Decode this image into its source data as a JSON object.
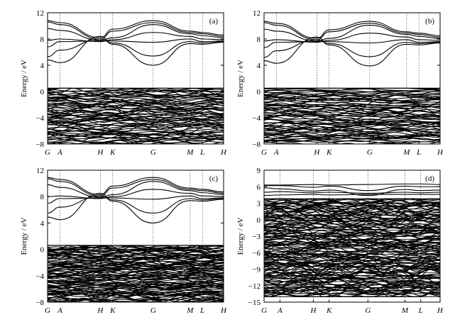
{
  "chart_data": [
    {
      "panel": "(a)",
      "type": "line",
      "ylabel": "Energy / eV",
      "ylim": [
        -8,
        12
      ],
      "yticks": [
        -8,
        -4,
        0,
        4,
        8,
        12
      ],
      "kpoints": [
        {
          "label": "G",
          "pos": 0.0
        },
        {
          "label": "A",
          "pos": 0.07
        },
        {
          "label": "H",
          "pos": 0.3
        },
        {
          "label": "K",
          "pos": 0.37
        },
        {
          "label": "G",
          "pos": 0.6
        },
        {
          "label": "M",
          "pos": 0.81
        },
        {
          "label": "L",
          "pos": 0.88
        },
        {
          "label": "H",
          "pos": 1.0
        }
      ],
      "conduction_bands": [
        {
          "x": [
            0,
            0.07,
            0.3,
            0.37,
            0.6,
            0.81,
            0.88,
            1.0
          ],
          "y": [
            10.8,
            10.5,
            8.2,
            9.5,
            10.8,
            9.2,
            9.0,
            8.6
          ]
        },
        {
          "x": [
            0,
            0.07,
            0.3,
            0.37,
            0.6,
            0.81,
            0.88,
            1.0
          ],
          "y": [
            10.6,
            10.2,
            8.0,
            9.2,
            10.5,
            9.0,
            8.8,
            8.4
          ]
        },
        {
          "x": [
            0,
            0.07,
            0.3,
            0.37,
            0.6,
            0.81,
            0.88,
            1.0
          ],
          "y": [
            9.6,
            9.3,
            7.8,
            8.2,
            10.2,
            8.8,
            8.5,
            8.2
          ]
        },
        {
          "x": [
            0,
            0.07,
            0.3,
            0.37,
            0.6,
            0.81,
            0.88,
            1.0
          ],
          "y": [
            7.8,
            8.0,
            7.6,
            7.9,
            9.0,
            8.4,
            8.0,
            7.9
          ]
        },
        {
          "x": [
            0,
            0.07,
            0.3,
            0.37,
            0.6,
            0.81,
            0.88,
            1.0
          ],
          "y": [
            6.8,
            7.6,
            7.7,
            7.7,
            7.5,
            8.0,
            7.6,
            7.7
          ]
        },
        {
          "x": [
            0,
            0.07,
            0.3,
            0.37,
            0.6,
            0.81,
            0.88,
            1.0
          ],
          "y": [
            5.3,
            6.3,
            8.0,
            7.4,
            5.4,
            7.6,
            7.4,
            7.6
          ]
        },
        {
          "x": [
            0,
            0.07,
            0.3,
            0.37,
            0.6,
            0.81,
            0.88,
            1.0
          ],
          "y": [
            4.8,
            4.4,
            8.4,
            7.2,
            4.0,
            7.3,
            7.2,
            7.5
          ]
        }
      ],
      "valence_band_region": [
        -8,
        0.5
      ]
    },
    {
      "panel": "(b)",
      "type": "line",
      "ylabel": "Energy / eV",
      "ylim": [
        -8,
        12
      ],
      "yticks": [
        -8,
        -4,
        0,
        4,
        8,
        12
      ],
      "kpoints": [
        {
          "label": "G",
          "pos": 0.0
        },
        {
          "label": "A",
          "pos": 0.07
        },
        {
          "label": "H",
          "pos": 0.3
        },
        {
          "label": "K",
          "pos": 0.37
        },
        {
          "label": "G",
          "pos": 0.6
        },
        {
          "label": "M",
          "pos": 0.81
        },
        {
          "label": "L",
          "pos": 0.88
        },
        {
          "label": "H",
          "pos": 1.0
        }
      ],
      "conduction_bands": [
        {
          "x": [
            0,
            0.07,
            0.3,
            0.37,
            0.6,
            0.81,
            0.88,
            1.0
          ],
          "y": [
            10.7,
            10.4,
            8.1,
            9.4,
            10.7,
            9.1,
            8.9,
            8.5
          ]
        },
        {
          "x": [
            0,
            0.07,
            0.3,
            0.37,
            0.6,
            0.81,
            0.88,
            1.0
          ],
          "y": [
            10.5,
            10.1,
            7.9,
            9.1,
            10.4,
            8.9,
            8.7,
            8.3
          ]
        },
        {
          "x": [
            0,
            0.07,
            0.3,
            0.37,
            0.6,
            0.81,
            0.88,
            1.0
          ],
          "y": [
            9.5,
            9.2,
            7.7,
            8.1,
            10.1,
            8.7,
            8.4,
            8.1
          ]
        },
        {
          "x": [
            0,
            0.07,
            0.3,
            0.37,
            0.6,
            0.81,
            0.88,
            1.0
          ],
          "y": [
            7.7,
            7.9,
            7.5,
            7.8,
            8.9,
            8.3,
            7.9,
            7.8
          ]
        },
        {
          "x": [
            0,
            0.07,
            0.3,
            0.37,
            0.6,
            0.81,
            0.88,
            1.0
          ],
          "y": [
            6.7,
            7.5,
            7.6,
            7.6,
            7.4,
            7.9,
            7.5,
            7.6
          ]
        },
        {
          "x": [
            0,
            0.07,
            0.3,
            0.37,
            0.6,
            0.81,
            0.88,
            1.0
          ],
          "y": [
            5.2,
            6.2,
            7.9,
            7.3,
            5.3,
            7.5,
            7.3,
            7.5
          ]
        },
        {
          "x": [
            0,
            0.07,
            0.3,
            0.37,
            0.6,
            0.81,
            0.88,
            1.0
          ],
          "y": [
            4.7,
            4.3,
            8.3,
            7.1,
            3.9,
            7.2,
            7.1,
            7.4
          ]
        }
      ],
      "valence_band_region": [
        -8,
        0.5
      ]
    },
    {
      "panel": "(c)",
      "type": "line",
      "ylabel": "Energy / eV",
      "ylim": [
        -8,
        12
      ],
      "yticks": [
        -8,
        -4,
        0,
        4,
        8,
        12
      ],
      "kpoints": [
        {
          "label": "G",
          "pos": 0.0
        },
        {
          "label": "A",
          "pos": 0.07
        },
        {
          "label": "H",
          "pos": 0.3
        },
        {
          "label": "K",
          "pos": 0.37
        },
        {
          "label": "G",
          "pos": 0.6
        },
        {
          "label": "M",
          "pos": 0.81
        },
        {
          "label": "L",
          "pos": 0.88
        },
        {
          "label": "H",
          "pos": 1.0
        }
      ],
      "conduction_bands": [
        {
          "x": [
            0,
            0.07,
            0.3,
            0.37,
            0.6,
            0.81,
            0.88,
            1.0
          ],
          "y": [
            10.9,
            10.6,
            8.3,
            9.6,
            10.9,
            9.3,
            9.1,
            8.7
          ]
        },
        {
          "x": [
            0,
            0.07,
            0.3,
            0.37,
            0.6,
            0.81,
            0.88,
            1.0
          ],
          "y": [
            10.7,
            10.3,
            8.1,
            9.3,
            10.6,
            9.1,
            8.9,
            8.5
          ]
        },
        {
          "x": [
            0,
            0.07,
            0.3,
            0.37,
            0.6,
            0.81,
            0.88,
            1.0
          ],
          "y": [
            9.8,
            9.4,
            7.9,
            8.3,
            10.3,
            8.9,
            8.6,
            8.3
          ]
        },
        {
          "x": [
            0,
            0.07,
            0.3,
            0.37,
            0.6,
            0.81,
            0.88,
            1.0
          ],
          "y": [
            8.0,
            8.1,
            7.7,
            8.0,
            9.1,
            8.5,
            8.1,
            8.0
          ]
        },
        {
          "x": [
            0,
            0.07,
            0.3,
            0.37,
            0.6,
            0.81,
            0.88,
            1.0
          ],
          "y": [
            7.0,
            7.7,
            7.8,
            7.8,
            7.6,
            8.1,
            7.7,
            7.8
          ]
        },
        {
          "x": [
            0,
            0.07,
            0.3,
            0.37,
            0.6,
            0.81,
            0.88,
            1.0
          ],
          "y": [
            5.5,
            6.4,
            8.1,
            7.5,
            5.5,
            7.7,
            7.5,
            7.7
          ]
        },
        {
          "x": [
            0,
            0.07,
            0.3,
            0.37,
            0.6,
            0.81,
            0.88,
            1.0
          ],
          "y": [
            4.9,
            4.5,
            8.5,
            7.3,
            4.0,
            7.4,
            7.3,
            7.6
          ]
        }
      ],
      "valence_band_region": [
        -8,
        0.6
      ]
    },
    {
      "panel": "(d)",
      "type": "line",
      "ylabel": "Energy / eV",
      "ylim": [
        -15,
        9
      ],
      "yticks": [
        -15,
        -12,
        -9,
        -6,
        -3,
        0,
        3,
        6,
        9
      ],
      "kpoints": [
        {
          "label": "G",
          "pos": 0.0
        },
        {
          "label": "A",
          "pos": 0.09
        },
        {
          "label": "H",
          "pos": 0.28
        },
        {
          "label": "K",
          "pos": 0.37
        },
        {
          "label": "G",
          "pos": 0.59
        },
        {
          "label": "M",
          "pos": 0.8
        },
        {
          "label": "L",
          "pos": 0.89
        },
        {
          "label": "H",
          "pos": 1.0
        }
      ],
      "conduction_bands": [
        {
          "x": [
            0,
            0.09,
            0.28,
            0.37,
            0.59,
            0.8,
            0.89,
            1.0
          ],
          "y": [
            6.3,
            6.3,
            6.4,
            6.3,
            6.4,
            6.5,
            6.5,
            6.4
          ]
        },
        {
          "x": [
            0,
            0.09,
            0.28,
            0.37,
            0.59,
            0.8,
            0.89,
            1.0
          ],
          "y": [
            6.2,
            6.2,
            5.9,
            6.1,
            5.3,
            6.1,
            6.0,
            6.0
          ]
        },
        {
          "x": [
            0,
            0.09,
            0.28,
            0.37,
            0.59,
            0.8,
            0.89,
            1.0
          ],
          "y": [
            5.8,
            5.6,
            5.2,
            5.4,
            4.4,
            5.5,
            5.3,
            5.4
          ]
        },
        {
          "x": [
            0,
            0.09,
            0.28,
            0.37,
            0.59,
            0.8,
            0.89,
            1.0
          ],
          "y": [
            5.0,
            5.1,
            4.9,
            5.0,
            4.8,
            5.0,
            4.9,
            5.0
          ]
        },
        {
          "x": [
            0,
            0.09,
            0.28,
            0.37,
            0.59,
            0.8,
            0.89,
            1.0
          ],
          "y": [
            4.4,
            4.5,
            4.6,
            4.5,
            4.6,
            4.6,
            4.6,
            4.6
          ]
        }
      ],
      "valence_band_region": [
        -14,
        3.8
      ]
    }
  ]
}
